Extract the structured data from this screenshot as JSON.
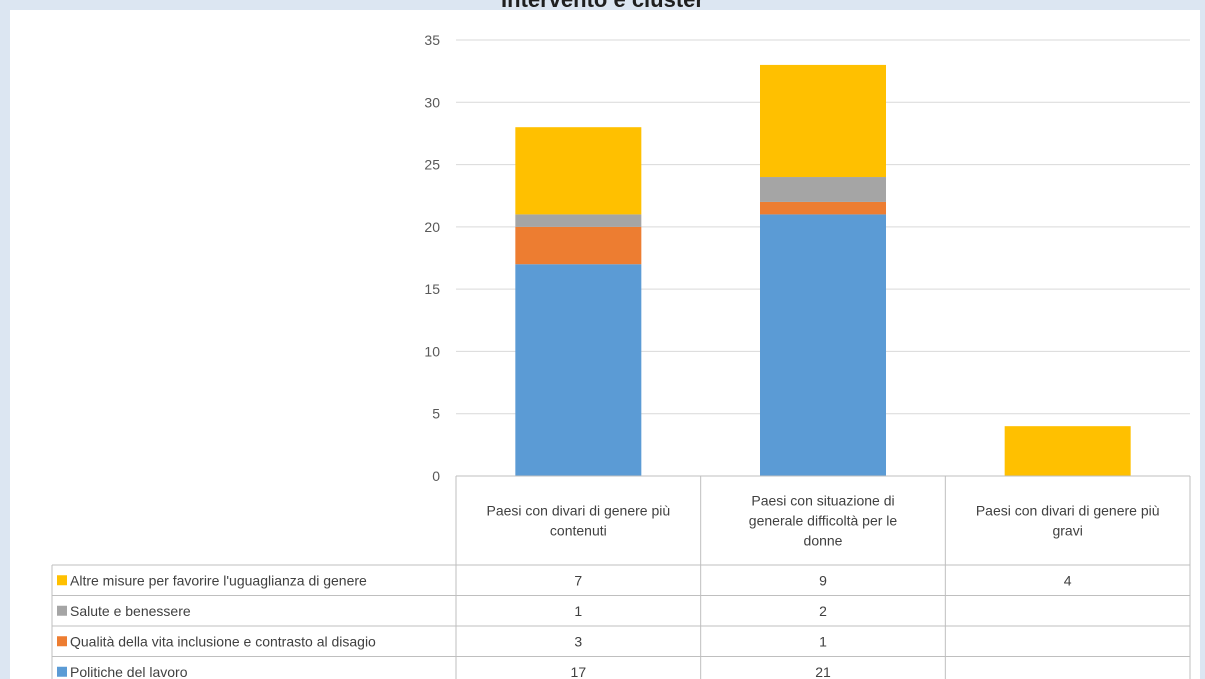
{
  "chart_data": {
    "type": "bar",
    "stacked": true,
    "title": "Intervento e cluster",
    "categories": [
      [
        "Paesi con divari di genere più",
        "contenuti"
      ],
      [
        "Paesi con situazione di",
        "generale difficoltà per le",
        "donne"
      ],
      [
        "Paesi con divari di genere più",
        "gravi"
      ]
    ],
    "series": [
      {
        "name": "Politiche del lavoro",
        "color": "#5b9bd5",
        "values": [
          17,
          21,
          null
        ]
      },
      {
        "name": "Qualità della vita inclusione e contrasto al disagio",
        "color": "#ed7d31",
        "values": [
          3,
          1,
          null
        ]
      },
      {
        "name": "Salute e benessere",
        "color": "#a5a5a5",
        "values": [
          1,
          2,
          null
        ]
      },
      {
        "name": "Altre misure  per favorire l'uguaglianza di genere",
        "color": "#ffc000",
        "values": [
          7,
          9,
          4
        ]
      }
    ],
    "ylim": [
      0,
      35
    ],
    "yticks": [
      0,
      5,
      10,
      15,
      20,
      25,
      30,
      35
    ],
    "grid": true,
    "legend": "data-table"
  }
}
